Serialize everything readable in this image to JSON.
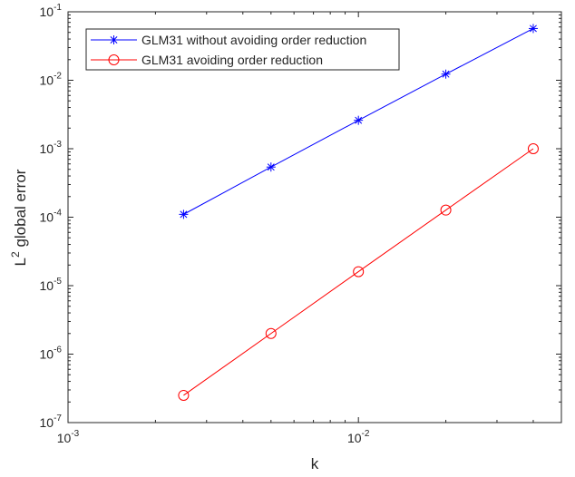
{
  "chart_data": {
    "type": "line",
    "xlabel": "k",
    "ylabel": "L² global error",
    "xscale": "log",
    "yscale": "log",
    "xlim": [
      0.001,
      0.05
    ],
    "ylim": [
      1e-07,
      0.1
    ],
    "grid": false,
    "legend_position": "top-left",
    "x_ticks": [
      {
        "value": 0.001,
        "base": "10",
        "exp": "-3"
      },
      {
        "value": 0.01,
        "base": "10",
        "exp": "-2"
      }
    ],
    "y_ticks": [
      {
        "value": 1e-07,
        "base": "10",
        "exp": "-7"
      },
      {
        "value": 1e-06,
        "base": "10",
        "exp": "-6"
      },
      {
        "value": 1e-05,
        "base": "10",
        "exp": "-5"
      },
      {
        "value": 0.0001,
        "base": "10",
        "exp": "-4"
      },
      {
        "value": 0.001,
        "base": "10",
        "exp": "-3"
      },
      {
        "value": 0.01,
        "base": "10",
        "exp": "-2"
      },
      {
        "value": 0.1,
        "base": "10",
        "exp": "-1"
      }
    ],
    "x": [
      0.0025,
      0.005,
      0.01,
      0.02,
      0.04
    ],
    "series": [
      {
        "name": "GLM31 without avoiding order reduction",
        "color": "#0000ff",
        "marker": "asterisk",
        "values": [
          0.00011,
          0.00054,
          0.0026,
          0.0123,
          0.057
        ]
      },
      {
        "name": "GLM31 avoiding order reduction",
        "color": "#ff0000",
        "marker": "circle",
        "values": [
          2.5e-07,
          2e-06,
          1.6e-05,
          0.000127,
          0.001
        ]
      }
    ]
  }
}
